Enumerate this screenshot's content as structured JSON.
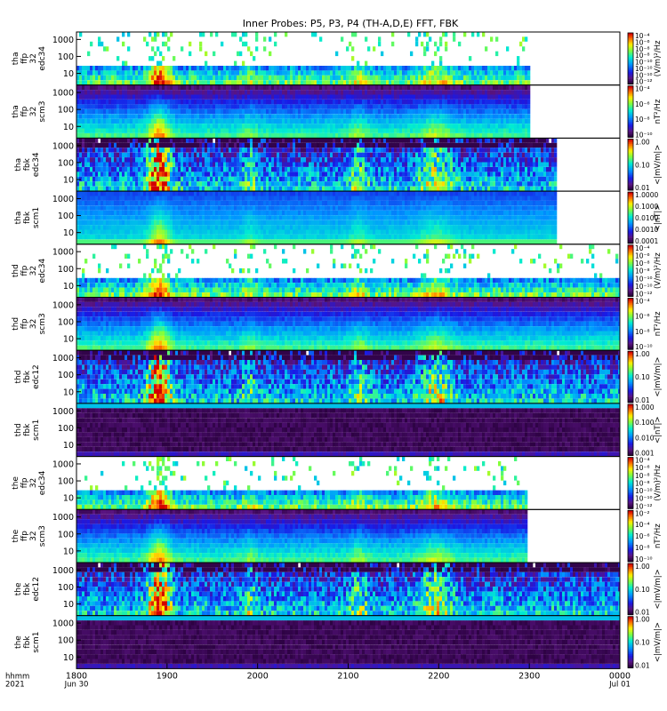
{
  "title": "Inner Probes: P5, P3, P4 (TH-A,D,E) FFT, FBK",
  "chart_data": {
    "type": "heatmap",
    "title": "Inner Probes: P5, P3, P4 (TH-A,D,E) FFT, FBK",
    "x_label_lines": [
      "hhmm",
      "2021"
    ],
    "x_ticks": [
      {
        "value": 1800,
        "label": "1800",
        "sub": "Jun 30"
      },
      {
        "value": 1900,
        "label": "1900",
        "sub": ""
      },
      {
        "value": 2000,
        "label": "2000",
        "sub": ""
      },
      {
        "value": 2100,
        "label": "2100",
        "sub": ""
      },
      {
        "value": 2200,
        "label": "2200",
        "sub": ""
      },
      {
        "value": 2300,
        "label": "2300",
        "sub": ""
      },
      {
        "value": 2400,
        "label": "0000",
        "sub": "Jul 01"
      }
    ],
    "y_scale": "log",
    "y_ticks": [
      "10",
      "100",
      "1000"
    ],
    "panels": [
      {
        "ylabel": [
          "tha",
          "ffp",
          "32",
          "edc34"
        ],
        "kind": "ffp_e",
        "data_end": 2300,
        "cbar_label": "(V/m)²/Hz",
        "cbar_ticks": [
          "10⁻¹²",
          "10⁻¹⁰",
          "10⁻¹⁰",
          "10⁻¹⁰",
          "10⁻⁸",
          "10⁻⁸",
          "10⁻⁶",
          "10⁻⁴"
        ]
      },
      {
        "ylabel": [
          "tha",
          "ffp",
          "32",
          "scm3"
        ],
        "kind": "ffp_b",
        "data_end": 2300,
        "cbar_label": "nT²/Hz",
        "cbar_ticks": [
          "10⁻¹⁰",
          "10⁻⁸",
          "10⁻⁶",
          "10⁻⁴"
        ]
      },
      {
        "ylabel": [
          "tha",
          "fbk",
          "edc34"
        ],
        "kind": "fbk_e",
        "data_end": 2330,
        "cbar_label": "<|mV/m|>",
        "cbar_ticks": [
          "0.01",
          "0.10",
          "1.00"
        ]
      },
      {
        "ylabel": [
          "tha",
          "fbk",
          "scm1"
        ],
        "kind": "fbk_b",
        "data_end": 2330,
        "cbar_label": "<|nT|>",
        "cbar_ticks": [
          "0.0001",
          "0.0010",
          "0.0100",
          "0.1000",
          "1.0000"
        ]
      },
      {
        "ylabel": [
          "thd",
          "ffp",
          "32",
          "edc34"
        ],
        "kind": "ffp_e",
        "data_end": 2400,
        "cbar_label": "(V/m)²/Hz",
        "cbar_ticks": [
          "10⁻¹²",
          "10⁻¹⁰",
          "10⁻¹⁰",
          "10⁻⁸",
          "10⁻⁸",
          "10⁻⁶",
          "10⁻⁴"
        ]
      },
      {
        "ylabel": [
          "thd",
          "ffp",
          "32",
          "scm3"
        ],
        "kind": "ffp_b",
        "data_end": 2400,
        "cbar_label": "nT²/Hz",
        "cbar_ticks": [
          "10⁻¹⁰",
          "10⁻⁸",
          "10⁻⁶",
          "10⁻⁴"
        ]
      },
      {
        "ylabel": [
          "thd",
          "fbk",
          "edc12"
        ],
        "kind": "fbk_e",
        "data_end": 2400,
        "cbar_label": "<|mV/m|>",
        "cbar_ticks": [
          "0.01",
          "0.10",
          "1.00"
        ]
      },
      {
        "ylabel": [
          "thd",
          "fbk",
          "scm1"
        ],
        "kind": "fbk_b2",
        "data_end": 2400,
        "cbar_label": "<|nT|>",
        "cbar_ticks": [
          "0.001",
          "0.010",
          "0.100",
          "1.000"
        ]
      },
      {
        "ylabel": [
          "the",
          "ffp",
          "32",
          "edc34"
        ],
        "kind": "ffp_e",
        "data_end": 2295,
        "cbar_label": "(V/m)²/Hz",
        "cbar_ticks": [
          "10⁻¹²",
          "10⁻¹⁰",
          "10⁻¹⁰",
          "10⁻⁸",
          "10⁻⁸",
          "10⁻⁶",
          "10⁻⁴"
        ]
      },
      {
        "ylabel": [
          "the",
          "ffp",
          "32",
          "scm3"
        ],
        "kind": "ffp_b",
        "data_end": 2295,
        "cbar_label": "nT²/Hz",
        "cbar_ticks": [
          "10⁻¹⁰",
          "10⁻⁸",
          "10⁻⁶",
          "10⁻⁴",
          "10⁻²"
        ]
      },
      {
        "ylabel": [
          "the",
          "fbk",
          "edc12"
        ],
        "kind": "fbk_e",
        "data_end": 2400,
        "cbar_label": "<|mV/m|>",
        "cbar_ticks": [
          "0.01",
          "0.10",
          "1.00"
        ]
      },
      {
        "ylabel": [
          "the",
          "fbk",
          "scm1"
        ],
        "kind": "fbk_b2",
        "data_end": 2400,
        "cbar_label": "<|mV/m|>",
        "cbar_ticks": [
          "0.01",
          "0.10",
          "1.00"
        ]
      }
    ]
  }
}
